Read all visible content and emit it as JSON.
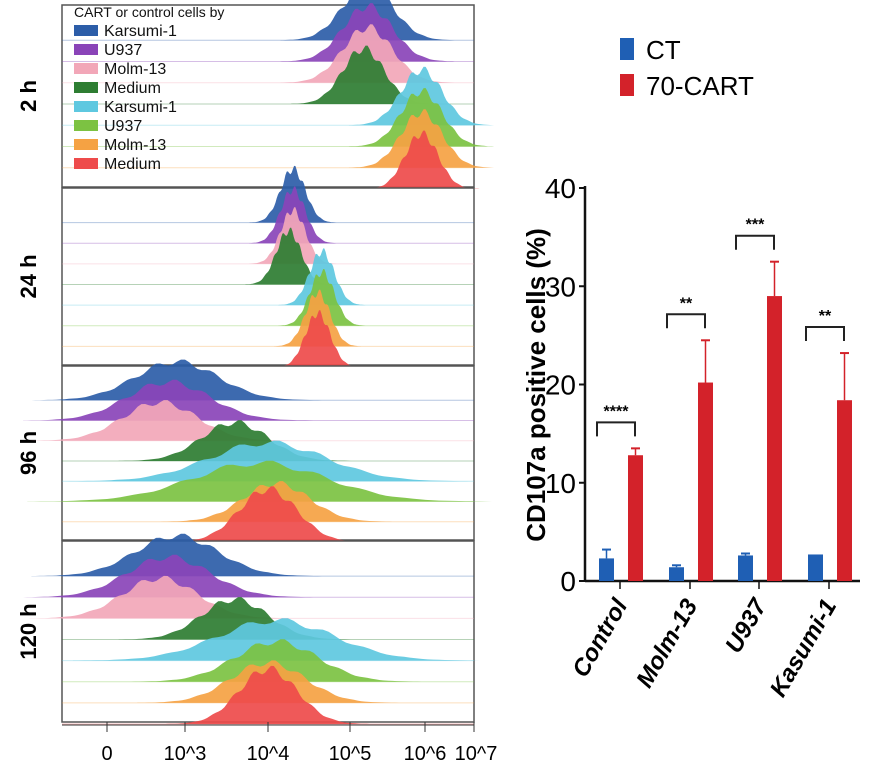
{
  "chart_data": [
    {
      "type": "area",
      "subtype": "ridgeline-histogram",
      "legend_title": "CART or control cells by",
      "legend_placement": "top-left",
      "series": [
        {
          "name": "Karsumi-1",
          "color": "#2c5da8"
        },
        {
          "name": "U937",
          "color": "#8a44b8"
        },
        {
          "name": "Molm-13",
          "color": "#f2a7b8"
        },
        {
          "name": "Medium",
          "color": "#2e7d32"
        },
        {
          "name": "Karsumi-1",
          "color": "#5ec8e0"
        },
        {
          "name": "U937",
          "color": "#7cc242"
        },
        {
          "name": "Molm-13",
          "color": "#f5a243"
        },
        {
          "name": "Medium",
          "color": "#ee4b4b"
        }
      ],
      "panels": [
        {
          "label": "2 h",
          "peaks_log10": [
            5.2,
            5.2,
            5.2,
            5.15,
            5.85,
            5.85,
            5.85,
            5.85
          ],
          "spread_log10": [
            0.3,
            0.3,
            0.3,
            0.25,
            0.25,
            0.25,
            0.25,
            0.2
          ]
        },
        {
          "label": "24 h",
          "peaks_log10": [
            4.3,
            4.3,
            4.3,
            4.25,
            4.65,
            4.65,
            4.6,
            4.6
          ],
          "spread_log10": [
            0.15,
            0.15,
            0.15,
            0.15,
            0.15,
            0.15,
            0.15,
            0.15
          ]
        },
        {
          "label": "96 h",
          "peaks_log10": [
            2.9,
            2.8,
            2.7,
            3.6,
            4.0,
            3.9,
            4.1,
            4.0
          ],
          "spread_log10": [
            0.5,
            0.5,
            0.45,
            0.4,
            0.7,
            0.8,
            0.4,
            0.35
          ]
        },
        {
          "label": "120 h",
          "peaks_log10": [
            2.9,
            2.8,
            2.7,
            3.6,
            4.1,
            4.1,
            4.0,
            4.0
          ],
          "spread_log10": [
            0.5,
            0.5,
            0.45,
            0.4,
            0.7,
            0.5,
            0.45,
            0.35
          ]
        }
      ],
      "x_ticks": [
        "0",
        "10^3",
        "10^4",
        "10^5",
        "10^6",
        "10^7"
      ]
    },
    {
      "type": "bar",
      "categories": [
        "Control",
        "Molm-13",
        "U937",
        "Kasumi-1"
      ],
      "series": [
        {
          "name": "CT",
          "color": "#1f5fb4",
          "values": [
            2.3,
            1.4,
            2.6,
            2.7
          ],
          "error": [
            0.9,
            0.2,
            0.2,
            0
          ]
        },
        {
          "name": "70-CART",
          "color": "#d3222a",
          "values": [
            12.8,
            20.2,
            29.0,
            18.4
          ],
          "error": [
            0.7,
            4.3,
            3.5,
            4.8
          ]
        }
      ],
      "significance": [
        "****",
        "**",
        "***",
        "**"
      ],
      "ylabel": "CD107a positive cells (%)",
      "ylim": [
        0,
        40
      ],
      "y_ticks": [
        "0",
        "10",
        "20",
        "30",
        "40"
      ],
      "legend_placement": "top"
    }
  ]
}
